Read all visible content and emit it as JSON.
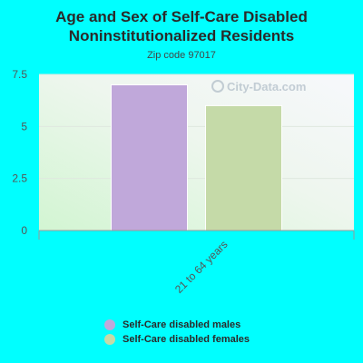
{
  "title_line1": "Age and Sex of Self-Care Disabled",
  "title_line2": "Noninstitutionalized Residents",
  "subtitle": "Zip code 97017",
  "watermark": "City-Data.com",
  "chart_data": {
    "type": "bar",
    "categories": [
      "21 to 64 years"
    ],
    "series": [
      {
        "name": "Self-Care disabled males",
        "values": [
          7
        ],
        "color": "#C0A8DA"
      },
      {
        "name": "Self-Care disabled females",
        "values": [
          6
        ],
        "color": "#C5DAA8"
      }
    ],
    "ylim": [
      0,
      7.5
    ],
    "yticks": [
      0,
      2.5,
      5,
      7.5
    ],
    "ytick_labels": [
      "0",
      "2.5",
      "5",
      "7.5"
    ],
    "grid": true,
    "legend_position": "bottom"
  },
  "legend": {
    "males_label": "Self-Care disabled males",
    "females_label": "Self-Care disabled females"
  }
}
